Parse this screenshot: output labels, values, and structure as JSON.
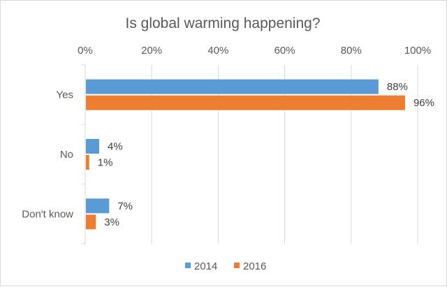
{
  "chart_data": {
    "type": "bar",
    "orientation": "horizontal",
    "title": "Is global warming happening?",
    "categories": [
      "Yes",
      "No",
      "Don't know"
    ],
    "series": [
      {
        "name": "2014",
        "color": "#5b9bd5",
        "values": [
          88,
          4,
          7
        ],
        "labels": [
          "88%",
          "4%",
          "7%"
        ]
      },
      {
        "name": "2016",
        "color": "#ed7d31",
        "values": [
          96,
          1,
          3
        ],
        "labels": [
          "96%",
          "1%",
          "3%"
        ]
      }
    ],
    "xlim": [
      0,
      100
    ],
    "xticks": [
      0,
      20,
      40,
      60,
      80,
      100
    ],
    "xtick_labels": [
      "0%",
      "20%",
      "40%",
      "60%",
      "80%",
      "100%"
    ],
    "axis_position": "top",
    "grid": true,
    "legend_position": "bottom"
  }
}
